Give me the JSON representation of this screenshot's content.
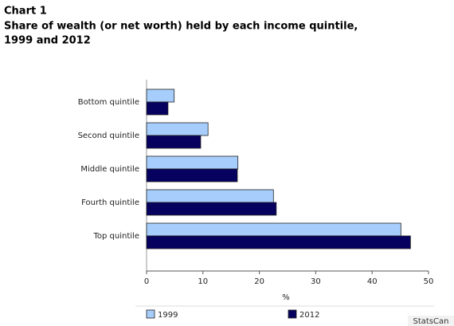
{
  "chart_data": {
    "type": "hbar",
    "title": "Chart 1",
    "subtitle": "Share of wealth (or net worth) held by each income quintile, 1999 and 2012",
    "x_label": "%",
    "categories": [
      "Bottom quintile",
      "Second quintile",
      "Middle quintile",
      "Fourth quintile",
      "Top quintile"
    ],
    "series": [
      {
        "name": "1999",
        "color": "#a6cdfb",
        "values": [
          4.9,
          10.9,
          16.2,
          22.5,
          45.1
        ]
      },
      {
        "name": "2012",
        "color": "#06005e",
        "values": [
          3.8,
          9.6,
          16.1,
          23.0,
          46.8
        ]
      }
    ],
    "xlim": [
      0,
      50
    ],
    "xticks": [
      0,
      10,
      20,
      30,
      40,
      50
    ],
    "legend": "bottom",
    "source": "StatsCan"
  }
}
